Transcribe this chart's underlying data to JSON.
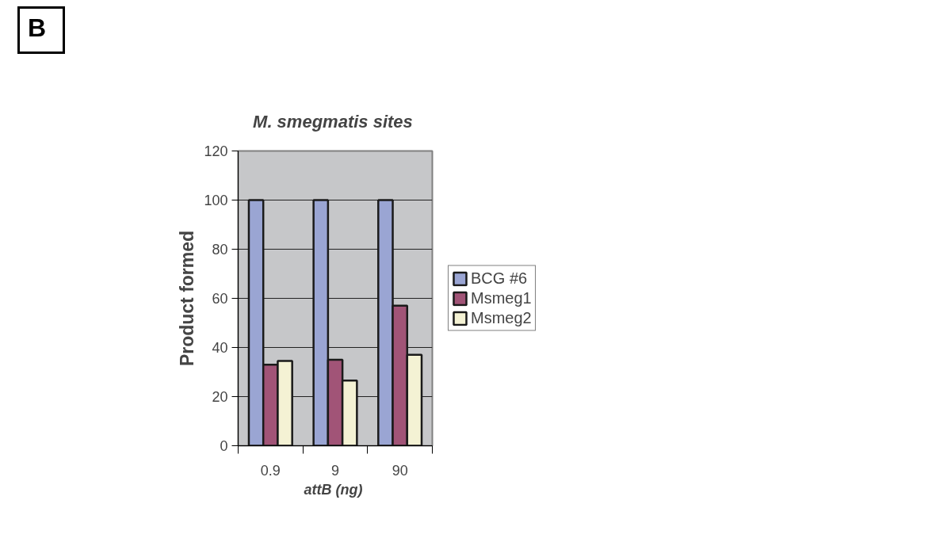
{
  "chart_data": {
    "type": "bar",
    "title": "M. smegmatis  sites",
    "xlabel": "attB  (ng)",
    "ylabel": "Product formed",
    "categories": [
      "0.9",
      "9",
      "90"
    ],
    "series": [
      {
        "name": "BCG #6",
        "color": "#9aa5d3",
        "values": [
          100,
          100,
          100
        ]
      },
      {
        "name": "Msmeg1",
        "color": "#a15477",
        "values": [
          33,
          35,
          57
        ]
      },
      {
        "name": "Msmeg2",
        "color": "#f4f2d4",
        "values": [
          34.5,
          26.5,
          37
        ]
      }
    ],
    "ylim": [
      0,
      120
    ],
    "yticks": [
      0,
      20,
      40,
      60,
      80,
      100,
      120
    ],
    "grid": "y",
    "legend": "right",
    "annotations": [
      "B"
    ]
  }
}
